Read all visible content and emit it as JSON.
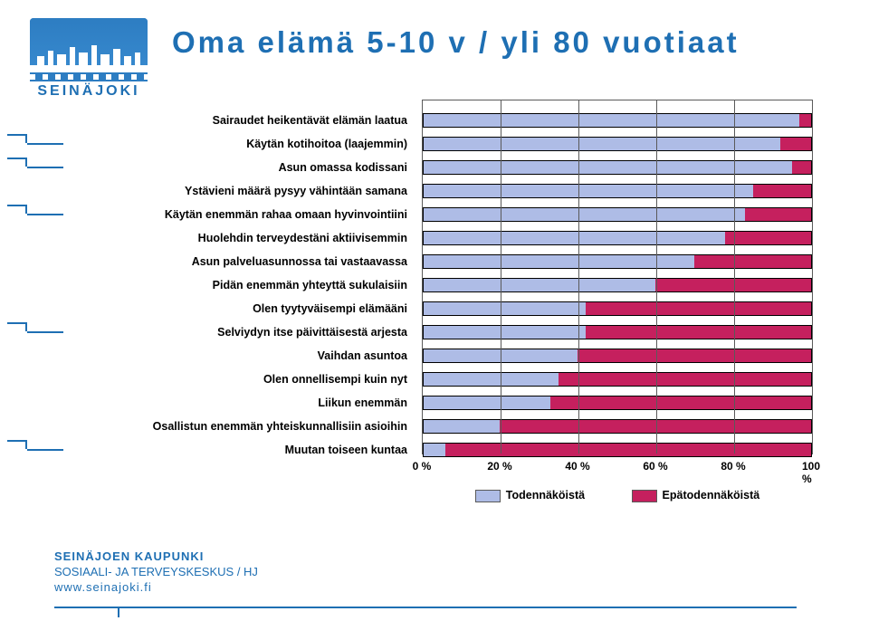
{
  "logo_text": "SEINÄJOKI",
  "title": "Oma elämä 5-10 v / yli 80 vuotiaat",
  "chart": {
    "type": "stacked-bar-horizontal",
    "plot_border_color": "#5a5a5a",
    "bar_border_color": "#000000",
    "background_color": "#ffffff",
    "label_fontsize": 12.5,
    "label_fontweight": "bold",
    "xlim": [
      0,
      100
    ],
    "xtick_step": 20,
    "xticks": [
      "0 %",
      "20 %",
      "40 %",
      "60 %",
      "80 %",
      "100 %"
    ],
    "series": [
      {
        "name": "Todennäköistä",
        "color": "#aebce6"
      },
      {
        "name": "Epätodennäköistä",
        "color": "#c5205e"
      }
    ],
    "categories": [
      {
        "label": "Sairaudet heikentävät elämän laatua",
        "v1": 97,
        "v2": 3,
        "callout": false
      },
      {
        "label": "Käytän kotihoitoa (laajemmin)",
        "v1": 92,
        "v2": 8,
        "callout": true
      },
      {
        "label": "Asun omassa kodissani",
        "v1": 95,
        "v2": 5,
        "callout": true
      },
      {
        "label": "Ystävieni määrä pysyy vähintään samana",
        "v1": 85,
        "v2": 15,
        "callout": false
      },
      {
        "label": "Käytän enemmän rahaa omaan hyvinvointiini",
        "v1": 83,
        "v2": 17,
        "callout": true
      },
      {
        "label": "Huolehdin terveydestäni aktiivisemmin",
        "v1": 78,
        "v2": 22,
        "callout": false
      },
      {
        "label": "Asun palveluasunnossa tai vastaavassa",
        "v1": 70,
        "v2": 30,
        "callout": false
      },
      {
        "label": "Pidän enemmän yhteyttä sukulaisiin",
        "v1": 60,
        "v2": 40,
        "callout": false
      },
      {
        "label": "Olen tyytyväisempi elämääni",
        "v1": 42,
        "v2": 58,
        "callout": false
      },
      {
        "label": "Selviydyn itse päivittäisestä arjesta",
        "v1": 42,
        "v2": 58,
        "callout": true
      },
      {
        "label": "Vaihdan asuntoa",
        "v1": 40,
        "v2": 60,
        "callout": false
      },
      {
        "label": "Olen onnellisempi kuin nyt",
        "v1": 35,
        "v2": 65,
        "callout": false
      },
      {
        "label": "Liikun enemmän",
        "v1": 33,
        "v2": 67,
        "callout": false
      },
      {
        "label": "Osallistun enemmän yhteiskunnallisiin asioihin",
        "v1": 20,
        "v2": 80,
        "callout": false
      },
      {
        "label": "Muutan toiseen kuntaa",
        "v1": 6,
        "v2": 94,
        "callout": true
      }
    ],
    "legend_labels": [
      "Todennäköistä",
      "Epätodennäköistä"
    ]
  },
  "footer": {
    "line1": "SEINÄJOEN KAUPUNKI",
    "line2": "SOSIAALI- JA TERVEYSKESKUS / HJ",
    "line3": "www.seinajoki.fi"
  },
  "accent_color": "#1e6fb3"
}
